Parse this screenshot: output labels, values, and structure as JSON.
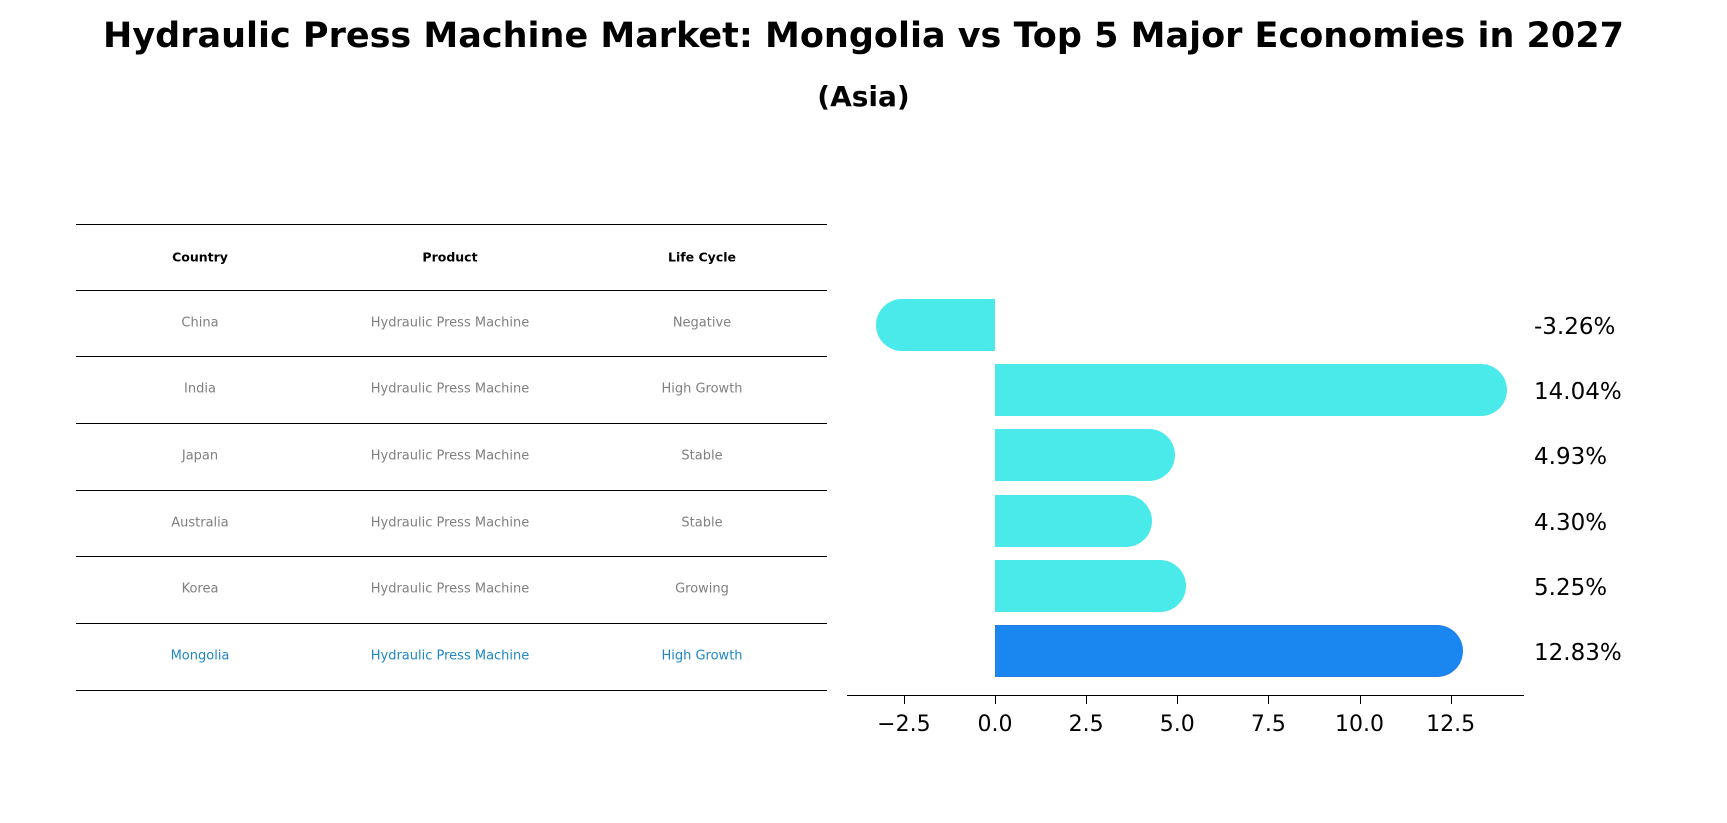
{
  "title": "Hydraulic Press Machine Market: Mongolia vs Top 5 Major Economies in 2027",
  "subtitle": "(Asia)",
  "table": {
    "headers": [
      "Country",
      "Product",
      "Life Cycle"
    ],
    "rows": [
      {
        "country": "China",
        "product": "Hydraulic Press Machine",
        "life_cycle": "Negative",
        "highlight": false
      },
      {
        "country": "India",
        "product": "Hydraulic Press Machine",
        "life_cycle": "High Growth",
        "highlight": false
      },
      {
        "country": "Japan",
        "product": "Hydraulic Press Machine",
        "life_cycle": "Stable",
        "highlight": false
      },
      {
        "country": "Australia",
        "product": "Hydraulic Press Machine",
        "life_cycle": "Stable",
        "highlight": false
      },
      {
        "country": "Korea",
        "product": "Hydraulic Press Machine",
        "life_cycle": "Growing",
        "highlight": false
      },
      {
        "country": "Mongolia",
        "product": "Hydraulic Press Machine",
        "life_cycle": "High Growth",
        "highlight": true
      }
    ]
  },
  "colors": {
    "bar": "#4beaea",
    "highlight_bar": "#1a86f0",
    "highlight_text": "#1f86c8",
    "muted_text": "#808080"
  },
  "chart_data": {
    "type": "bar",
    "orientation": "horizontal",
    "title": "Hydraulic Press Machine Market: Mongolia vs Top 5 Major Economies in 2027",
    "subtitle": "(Asia)",
    "categories": [
      "China",
      "India",
      "Japan",
      "Australia",
      "Korea",
      "Mongolia"
    ],
    "values": [
      -3.26,
      14.04,
      4.93,
      4.3,
      5.25,
      12.83
    ],
    "value_labels": [
      "-3.26%",
      "14.04%",
      "4.93%",
      "4.30%",
      "5.25%",
      "12.83%"
    ],
    "highlight": "Mongolia",
    "xlabel": "",
    "ylabel": "",
    "xticks": [
      "−2.5",
      "0.0",
      "2.5",
      "5.0",
      "7.5",
      "10.0",
      "12.5"
    ],
    "xtick_values": [
      -2.5,
      0,
      2.5,
      5,
      7.5,
      10,
      12.5
    ],
    "xlim": [
      -4.1,
      15.0
    ],
    "grid": false,
    "legend": null
  }
}
